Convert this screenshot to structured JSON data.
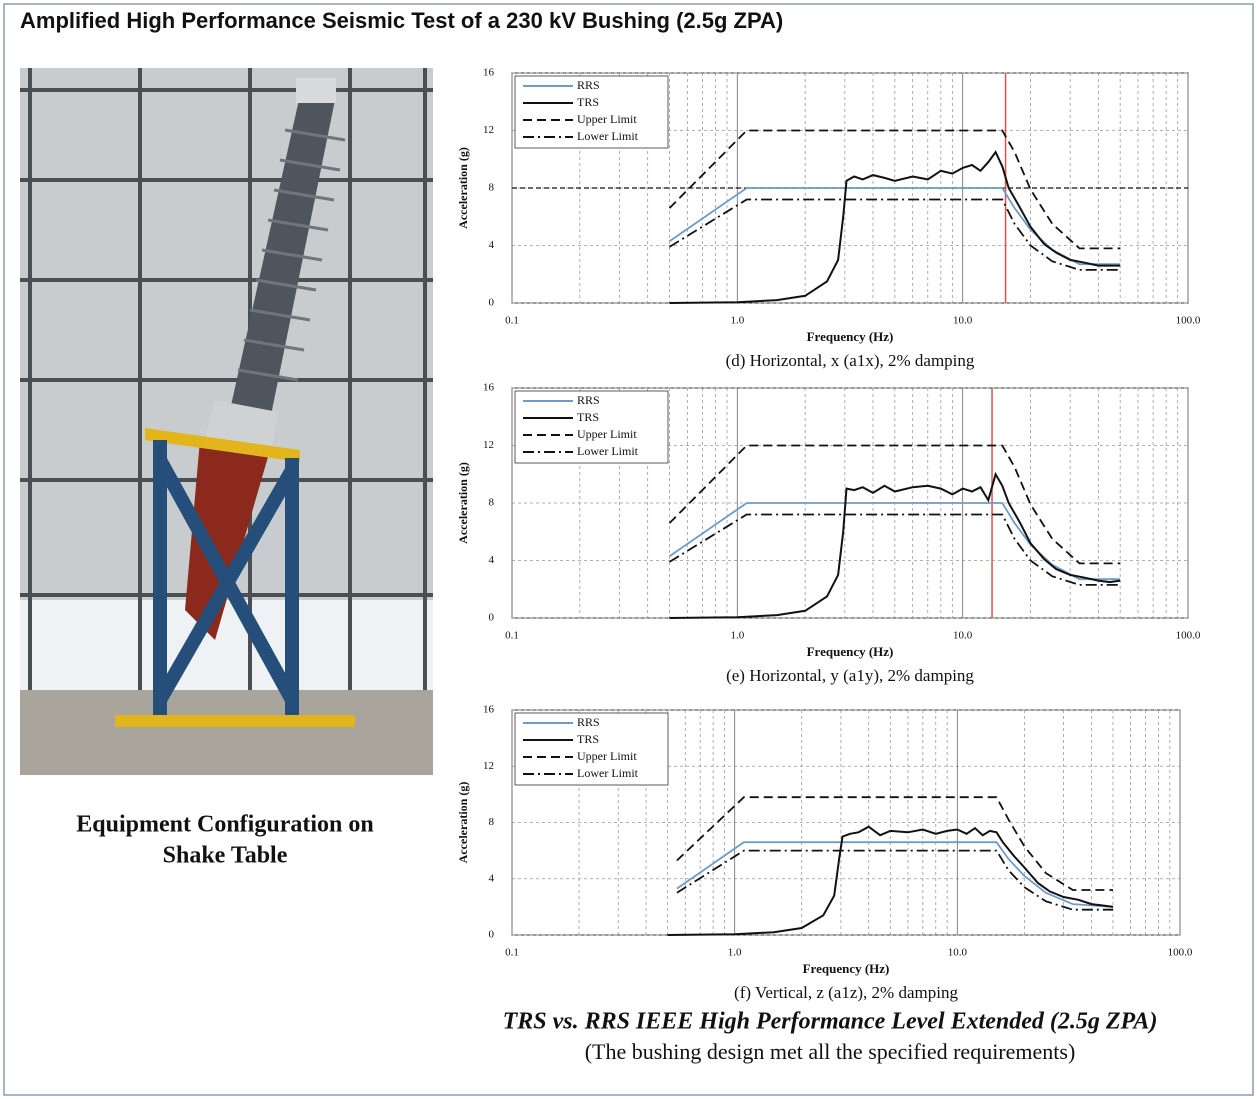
{
  "title": "Amplified High Performance Seismic Test of a 230 kV Bushing (2.5g ZPA)",
  "photo_caption": [
    "Equipment Configuration on",
    "Shake Table"
  ],
  "footer": {
    "heading": "TRS vs. RRS IEEE High Performance Level Extended (2.5g ZPA)",
    "note": "(The bushing design met all the specified requirements)"
  },
  "chart_data": [
    {
      "type": "line",
      "xscale": "log",
      "grid": true,
      "legend": "top-left",
      "x_label": "Frequency (Hz)",
      "y_label": "Acceleration (g)",
      "caption": "(d) Horizontal, x (a1x), 2% damping",
      "xlim": [
        0.1,
        100
      ],
      "xticks": [
        0.1,
        {
          "value": 1,
          "label": "1.0"
        },
        {
          "value": 10,
          "label": "10.0"
        },
        {
          "value": 100,
          "label": "100.0"
        }
      ],
      "ylim": [
        0,
        16
      ],
      "yticks": [
        0,
        4,
        8,
        12,
        16
      ],
      "hline": 8,
      "vline": 15.5,
      "vline_color": "#d9534f",
      "series": [
        {
          "name": "RRS",
          "color": "#6f9bc8",
          "line_style": "solid",
          "x": [
            0.5,
            1.1,
            15,
            17,
            20,
            25,
            33,
            50
          ],
          "values": [
            4.3,
            8,
            8,
            6.6,
            5.1,
            3.7,
            2.7,
            2.7
          ]
        },
        {
          "name": "TRS",
          "color": "#111111",
          "line_style": "solid",
          "x": [
            0.5,
            1,
            1.5,
            2,
            2.5,
            2.8,
            2.95,
            3.05,
            3.3,
            3.6,
            4,
            4.5,
            5,
            6,
            7,
            8,
            9,
            10,
            11,
            12,
            13,
            14,
            15,
            16,
            18,
            20,
            23,
            26,
            30,
            35,
            40,
            45,
            50
          ],
          "values": [
            0,
            0.05,
            0.2,
            0.5,
            1.5,
            3,
            6,
            8.5,
            8.8,
            8.6,
            8.9,
            8.7,
            8.5,
            8.8,
            8.6,
            9.2,
            9,
            9.4,
            9.6,
            9.2,
            9.8,
            10.5,
            9.5,
            8,
            6.6,
            5.3,
            4.1,
            3.5,
            3,
            2.8,
            2.6,
            2.6,
            2.6
          ]
        },
        {
          "name": "Upper Limit",
          "color": "#111111",
          "line_style": "dashed",
          "x": [
            0.5,
            1.1,
            15,
            17,
            20,
            25,
            33,
            50
          ],
          "values": [
            6.6,
            12,
            12,
            10.5,
            7.9,
            5.5,
            3.8,
            3.8
          ]
        },
        {
          "name": "Lower Limit",
          "color": "#111111",
          "line_style": "dashdot",
          "x": [
            0.5,
            1.1,
            15,
            17,
            20,
            25,
            33,
            50
          ],
          "values": [
            3.9,
            7.2,
            7.2,
            5.5,
            4,
            2.9,
            2.3,
            2.3
          ]
        }
      ]
    },
    {
      "type": "line",
      "xscale": "log",
      "grid": true,
      "legend": "top-left",
      "x_label": "Frequency (Hz)",
      "y_label": "Acceleration (g)",
      "caption": "(e) Horizontal, y (a1y), 2% damping",
      "xlim": [
        0.1,
        100
      ],
      "xticks": [
        0.1,
        {
          "value": 1,
          "label": "1.0"
        },
        {
          "value": 10,
          "label": "10.0"
        },
        {
          "value": 100,
          "label": "100.0"
        }
      ],
      "ylim": [
        0,
        16
      ],
      "yticks": [
        0,
        4,
        8,
        12,
        16
      ],
      "vline": 13.5,
      "vline_color": "#d9534f",
      "series": [
        {
          "name": "RRS",
          "color": "#6f9bc8",
          "line_style": "solid",
          "x": [
            0.5,
            1.1,
            15,
            17,
            20,
            25,
            33,
            50
          ],
          "values": [
            4.3,
            8,
            8,
            6.6,
            5.1,
            3.7,
            2.7,
            2.7
          ]
        },
        {
          "name": "TRS",
          "color": "#111111",
          "line_style": "solid",
          "x": [
            0.5,
            1,
            1.5,
            2,
            2.5,
            2.8,
            2.95,
            3.05,
            3.3,
            3.6,
            4,
            4.5,
            5,
            6,
            7,
            8,
            9,
            10,
            11,
            12,
            13,
            14,
            15,
            16,
            18,
            20,
            23,
            26,
            30,
            35,
            40,
            45,
            50
          ],
          "values": [
            0,
            0.05,
            0.2,
            0.5,
            1.5,
            3,
            6,
            9,
            8.9,
            9.1,
            8.7,
            9.2,
            8.8,
            9.1,
            9.2,
            9,
            8.6,
            9,
            8.8,
            9.1,
            8.2,
            10,
            9.2,
            8,
            6.6,
            5.2,
            4.1,
            3.4,
            3,
            2.8,
            2.6,
            2.5,
            2.6
          ]
        },
        {
          "name": "Upper Limit",
          "color": "#111111",
          "line_style": "dashed",
          "x": [
            0.5,
            1.1,
            15,
            17,
            20,
            25,
            33,
            50
          ],
          "values": [
            6.6,
            12,
            12,
            10.5,
            7.9,
            5.5,
            3.8,
            3.8
          ]
        },
        {
          "name": "Lower Limit",
          "color": "#111111",
          "line_style": "dashdot",
          "x": [
            0.5,
            1.1,
            15,
            17,
            20,
            25,
            33,
            50
          ],
          "values": [
            3.9,
            7.2,
            7.2,
            5.5,
            4,
            2.9,
            2.3,
            2.3
          ]
        }
      ]
    },
    {
      "type": "line",
      "xscale": "log",
      "grid": true,
      "legend": "top-left",
      "x_label": "Frequency (Hz)",
      "y_label": "Acceleration (g)",
      "caption": "(f) Vertical, z (a1z), 2% damping",
      "xlim": [
        0.1,
        100
      ],
      "xticks": [
        0.1,
        {
          "value": 1,
          "label": "1.0"
        },
        {
          "value": 10,
          "label": "10.0"
        },
        {
          "value": 100,
          "label": "100.0"
        }
      ],
      "ylim": [
        0,
        16
      ],
      "yticks": [
        0,
        4,
        8,
        12,
        16
      ],
      "series": [
        {
          "name": "RRS",
          "color": "#6f9bc8",
          "line_style": "solid",
          "x": [
            0.55,
            1.1,
            15,
            17,
            20,
            25,
            33,
            50
          ],
          "values": [
            3.3,
            6.6,
            6.6,
            5.4,
            4.2,
            3,
            2.2,
            2
          ]
        },
        {
          "name": "TRS",
          "color": "#111111",
          "line_style": "solid",
          "x": [
            0.5,
            1,
            1.5,
            2,
            2.5,
            2.8,
            2.95,
            3.05,
            3.3,
            3.6,
            4,
            4.5,
            5,
            6,
            7,
            8,
            9,
            10,
            11,
            12,
            13,
            14,
            15,
            16,
            18,
            20,
            23,
            26,
            30,
            35,
            40,
            45,
            50
          ],
          "values": [
            0,
            0.05,
            0.2,
            0.5,
            1.4,
            2.8,
            5.5,
            7,
            7.2,
            7.3,
            7.7,
            7.1,
            7.4,
            7.3,
            7.5,
            7.2,
            7.4,
            7.5,
            7.2,
            7.6,
            7.1,
            7.4,
            7.3,
            6.6,
            5.6,
            4.8,
            3.7,
            3.1,
            2.7,
            2.5,
            2.2,
            2.1,
            2
          ]
        },
        {
          "name": "Upper Limit",
          "color": "#111111",
          "line_style": "dashed",
          "x": [
            0.55,
            1.1,
            15,
            17,
            20,
            25,
            33,
            50
          ],
          "values": [
            5.3,
            9.8,
            9.8,
            8.2,
            6.3,
            4.4,
            3.2,
            3.2
          ]
        },
        {
          "name": "Lower Limit",
          "color": "#111111",
          "line_style": "dashdot",
          "x": [
            0.55,
            1.1,
            15,
            17,
            20,
            25,
            33,
            50
          ],
          "values": [
            3,
            6,
            6,
            4.6,
            3.4,
            2.4,
            1.8,
            1.8
          ]
        }
      ]
    }
  ]
}
